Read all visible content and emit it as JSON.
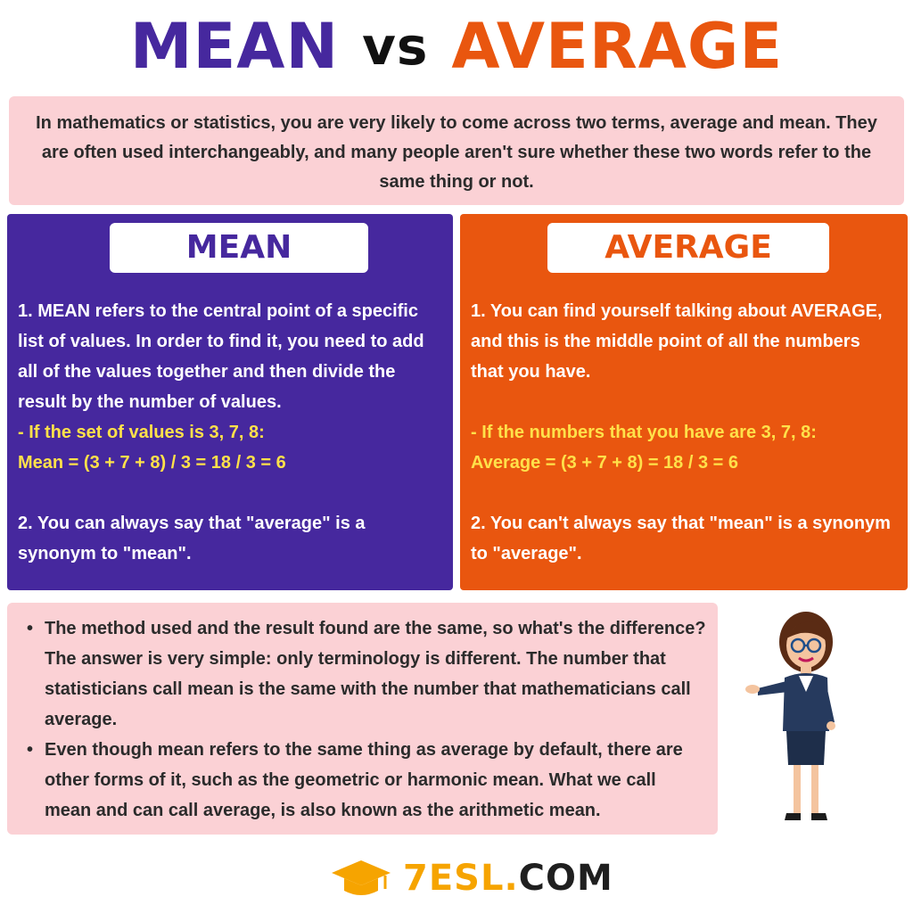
{
  "title": {
    "word1": "MEAN",
    "word2": "vs",
    "word3": "AVERAGE"
  },
  "intro": "In mathematics or statistics, you are very likely to come across two terms, average and mean. They are often used interchangeably, and many people aren't sure whether these two words refer to the same thing or not.",
  "mean": {
    "heading": "MEAN",
    "p1": "1. MEAN refers to the central point of a specific list of values. In order to find it, you need to add all of the values together and then divide the result by the number of values.",
    "example_line1": "- If the set of values is 3, 7, 8:",
    "example_line2": "Mean = (3 + 7 + 8) / 3 = 18 / 3 = 6",
    "p2": "2. You can always say that \"average\" is a synonym to \"mean\"."
  },
  "average": {
    "heading": "AVERAGE",
    "p1": "1. You can find yourself talking about AVERAGE, and this is the middle point of all the numbers that you have.",
    "example_line1": "- If the numbers that you have are 3, 7, 8:",
    "example_line2": "Average = (3 + 7 + 8) = 18 / 3 = 6",
    "p2": "2. You can't always say that \"mean\" is a synonym to \"average\"."
  },
  "notes": [
    "The method used and the result found are the same, so what's the difference? The answer is very simple: only terminology is different. The number that statisticians call mean is the same with the number that mathematicians call average.",
    "Even though mean refers to the same thing as average by default, there are other forms of it, such as the geometric or harmonic mean. What we call mean and can call average, is also known as the arithmetic mean."
  ],
  "logo": {
    "part1": "7ESL",
    "part2": ".",
    "part3": "COM"
  },
  "colors": {
    "purple": "#46289e",
    "orange": "#e9560f",
    "pink": "#fbd1d5",
    "yellow": "#ffe14a",
    "logo_gold": "#f6a400"
  }
}
